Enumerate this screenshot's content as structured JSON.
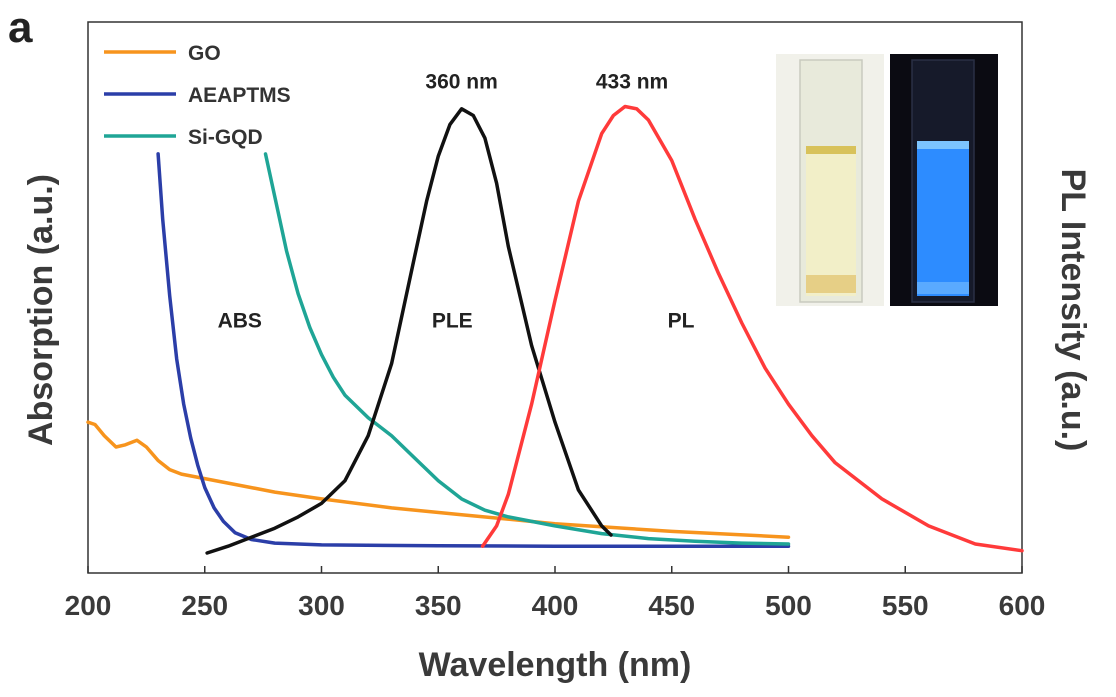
{
  "panel_label": "a",
  "chart_data": {
    "type": "line",
    "title": "",
    "xlabel": "Wavelength (nm)",
    "ylabel_left": "Absorption (a.u.)",
    "ylabel_right": "PL Intensity (a.u.)",
    "xlim": [
      200,
      600
    ],
    "ylim": [
      0,
      1.0
    ],
    "x_ticks": [
      200,
      250,
      300,
      350,
      400,
      450,
      500,
      550,
      600
    ],
    "grid": false,
    "legend_placement": "top-left",
    "series": [
      {
        "name": "GO",
        "color": "#f7941d",
        "x": [
          200,
          203,
          207,
          212,
          216,
          221,
          225,
          230,
          235,
          240,
          250,
          260,
          280,
          300,
          330,
          360,
          400,
          450,
          500
        ],
        "y": [
          0.29,
          0.285,
          0.26,
          0.235,
          0.24,
          0.25,
          0.235,
          0.205,
          0.185,
          0.175,
          0.165,
          0.155,
          0.135,
          0.12,
          0.1,
          0.085,
          0.065,
          0.048,
          0.035
        ]
      },
      {
        "name": "AEAPTMS",
        "color": "#2b3ea8",
        "x": [
          230,
          232,
          235,
          238,
          241,
          244,
          247,
          250,
          254,
          258,
          263,
          270,
          280,
          300,
          350,
          400,
          450,
          500
        ],
        "y": [
          0.885,
          0.74,
          0.57,
          0.43,
          0.33,
          0.255,
          0.195,
          0.145,
          0.1,
          0.07,
          0.045,
          0.03,
          0.022,
          0.018,
          0.016,
          0.015,
          0.015,
          0.015
        ]
      },
      {
        "name": "Si-GQD",
        "color": "#1fa596",
        "x": [
          276,
          280,
          285,
          290,
          295,
          300,
          305,
          310,
          320,
          330,
          340,
          350,
          360,
          370,
          380,
          400,
          420,
          440,
          460,
          480,
          500
        ],
        "y": [
          0.885,
          0.79,
          0.67,
          0.575,
          0.5,
          0.44,
          0.39,
          0.35,
          0.3,
          0.26,
          0.21,
          0.16,
          0.12,
          0.095,
          0.08,
          0.06,
          0.043,
          0.032,
          0.026,
          0.022,
          0.02
        ]
      },
      {
        "name": "PLE",
        "color": "#111111",
        "x": [
          251,
          260,
          270,
          280,
          290,
          300,
          310,
          320,
          330,
          340,
          345,
          350,
          355,
          360,
          365,
          370,
          375,
          380,
          390,
          400,
          410,
          420,
          424
        ],
        "y": [
          0.0,
          0.015,
          0.035,
          0.055,
          0.08,
          0.11,
          0.16,
          0.26,
          0.42,
          0.66,
          0.78,
          0.88,
          0.95,
          0.985,
          0.97,
          0.92,
          0.82,
          0.68,
          0.46,
          0.29,
          0.14,
          0.06,
          0.04
        ]
      },
      {
        "name": "PL",
        "color": "#ff3a3a",
        "x": [
          369,
          375,
          380,
          390,
          400,
          410,
          420,
          425,
          430,
          435,
          440,
          450,
          460,
          470,
          480,
          490,
          500,
          510,
          520,
          540,
          560,
          580,
          600
        ],
        "y": [
          0.015,
          0.06,
          0.13,
          0.33,
          0.56,
          0.78,
          0.93,
          0.97,
          0.99,
          0.985,
          0.96,
          0.87,
          0.74,
          0.62,
          0.51,
          0.41,
          0.33,
          0.26,
          0.2,
          0.12,
          0.06,
          0.02,
          0.005
        ]
      }
    ],
    "legend_entries": [
      "GO",
      "AEAPTMS",
      "Si-GQD"
    ],
    "annotations": [
      {
        "text": "360 nm",
        "x": 360,
        "y": 1.03
      },
      {
        "text": "433 nm",
        "x": 433,
        "y": 1.03
      },
      {
        "text": "ABS",
        "x": 265,
        "y": 0.5
      },
      {
        "text": "PLE",
        "x": 356,
        "y": 0.5
      },
      {
        "text": "PL",
        "x": 454,
        "y": 0.5
      }
    ]
  },
  "inset": {
    "left_photo": "cuvette under ambient light",
    "right_photo": "cuvette under UV light with blue emission",
    "emission_color": "#2d8cff"
  }
}
